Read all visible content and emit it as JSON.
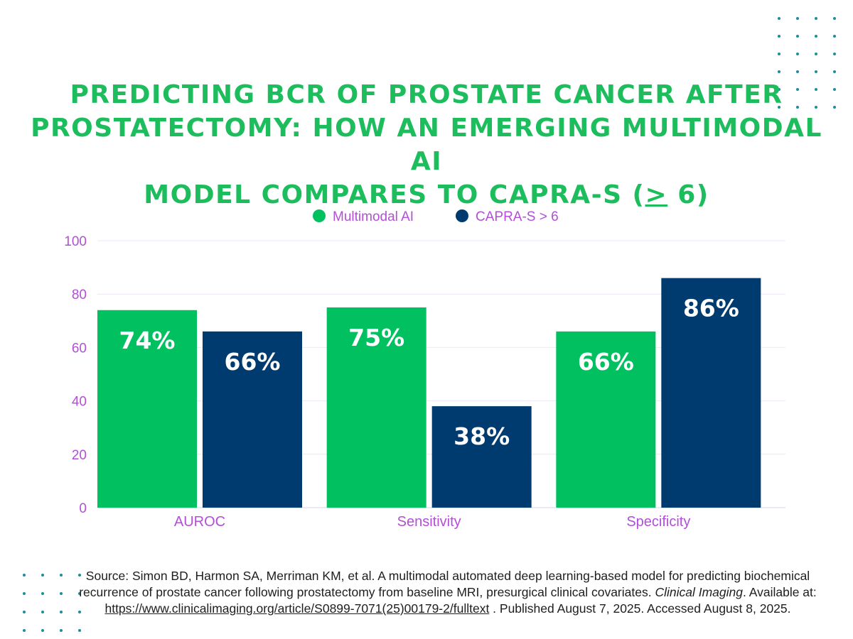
{
  "title": {
    "line1": "PREDICTING BCR OF PROSTATE CANCER AFTER",
    "line2": "PROSTATECTOMY: HOW AN EMERGING MULTIMODAL AI",
    "line3_before": "MODEL COMPARES TO CAPRA-S (",
    "line3_symbol": ">",
    "line3_after": " 6)"
  },
  "chart_data": {
    "type": "bar",
    "categories": [
      "AUROC",
      "Sensitivity",
      "Specificity"
    ],
    "series": [
      {
        "name": "Multimodal AI",
        "color": "#00c060",
        "values": [
          74,
          75,
          66
        ],
        "labels": [
          "74%",
          "75%",
          "66%"
        ]
      },
      {
        "name": "CAPRA-S > 6",
        "color": "#003b6f",
        "values": [
          66,
          38,
          86
        ],
        "labels": [
          "66%",
          "38%",
          "86%"
        ]
      }
    ],
    "yticks": [
      "0",
      "20",
      "40",
      "60",
      "80",
      "100"
    ],
    "ylim": [
      0,
      100
    ],
    "grid": true,
    "legend_position": "top-center",
    "axis_text_color": "#b34fd6"
  },
  "source": {
    "prefix": "Source: Simon BD, Harmon SA, Merriman KM, et al. A multimodal automated deep learning-based model for predicting biochemical recurrence of prostate cancer following prostatectomy from baseline MRI, presurgical clinical covariates.",
    "journal": "Clinical Imaging",
    "available": ". Available at: ",
    "url": "https://www.clinicalimaging.org/article/S0899-7071(25)00179-2/fulltext",
    "suffix": " . Published August 7, 2025. Accessed August 8, 2025."
  },
  "decor": {
    "dot_color": "#1a8f9c"
  }
}
